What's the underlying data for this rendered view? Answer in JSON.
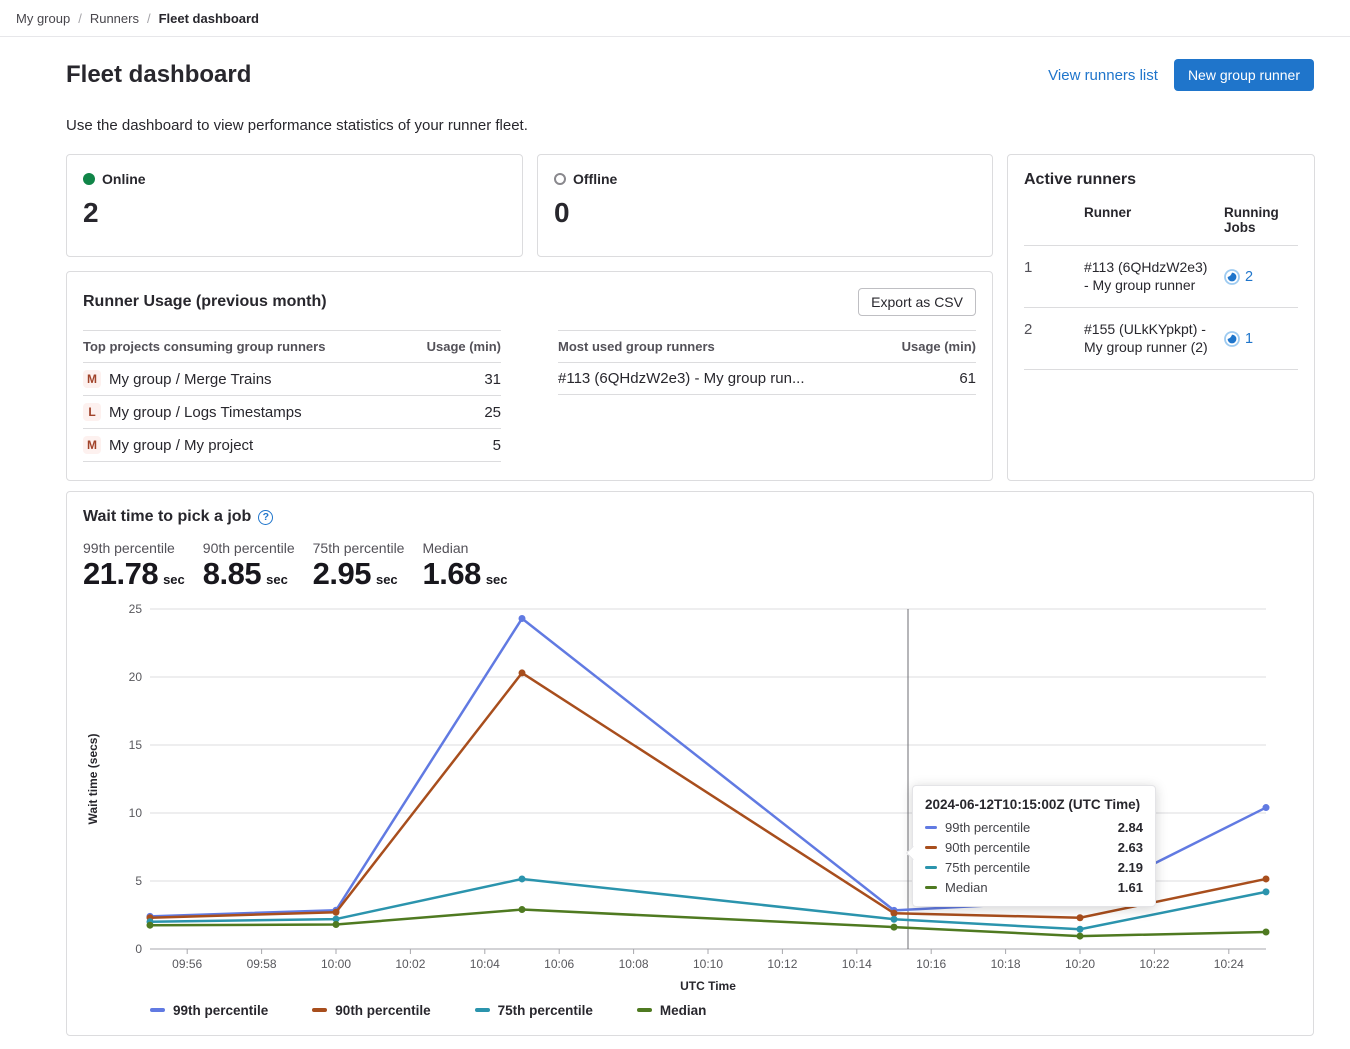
{
  "breadcrumb": {
    "items": [
      "My group",
      "Runners"
    ],
    "separator": "/",
    "current": "Fleet dashboard"
  },
  "header": {
    "title": "Fleet dashboard",
    "view_runners_link": "View runners list",
    "new_runner_button": "New group runner"
  },
  "subtitle": "Use the dashboard to view performance statistics of your runner fleet.",
  "status_cards": {
    "online": {
      "label": "Online",
      "value": "2"
    },
    "offline": {
      "label": "Offline",
      "value": "0"
    }
  },
  "active_runners": {
    "title": "Active runners",
    "columns": {
      "runner": "Runner",
      "jobs": "Running Jobs"
    },
    "rows": [
      {
        "index": "1",
        "runner": "#113 (6QHdzW2e3) - My group runner",
        "jobs": "2"
      },
      {
        "index": "2",
        "runner": "#155 (ULkKYpkpt) - My group runner (2)",
        "jobs": "1"
      }
    ]
  },
  "runner_usage": {
    "title": "Runner Usage (previous month)",
    "export_button": "Export as CSV",
    "top_projects": {
      "name_header": "Top projects consuming group runners",
      "usage_header": "Usage (min)",
      "rows": [
        {
          "avatar": "M",
          "name": "My group / Merge Trains",
          "usage": "31"
        },
        {
          "avatar": "L",
          "name": "My group / Logs Timestamps",
          "usage": "25"
        },
        {
          "avatar": "M",
          "name": "My group / My project",
          "usage": "5"
        }
      ]
    },
    "most_used": {
      "name_header": "Most used group runners",
      "usage_header": "Usage (min)",
      "rows": [
        {
          "name": "#113 (6QHdzW2e3) - My group run...",
          "usage": "61"
        }
      ]
    }
  },
  "wait_chart": {
    "title": "Wait time to pick a job",
    "stats": [
      {
        "label": "99th percentile",
        "value": "21.78",
        "unit": "sec"
      },
      {
        "label": "90th percentile",
        "value": "8.85",
        "unit": "sec"
      },
      {
        "label": "75th percentile",
        "value": "2.95",
        "unit": "sec"
      },
      {
        "label": "Median",
        "value": "1.68",
        "unit": "sec"
      }
    ],
    "tooltip": {
      "title": "2024-06-12T10:15:00Z (UTC Time)",
      "rows": [
        {
          "name": "99th percentile",
          "value": "2.84"
        },
        {
          "name": "90th percentile",
          "value": "2.63"
        },
        {
          "name": "75th percentile",
          "value": "2.19"
        },
        {
          "name": "Median",
          "value": "1.61"
        }
      ]
    }
  },
  "chart_data": {
    "type": "line",
    "title": "Wait time to pick a job",
    "xlabel": "UTC Time",
    "ylabel": "Wait time (secs)",
    "ylim": [
      0,
      25
    ],
    "y_ticks": [
      0,
      5,
      10,
      15,
      20,
      25
    ],
    "x_range": [
      "09:55",
      "10:25"
    ],
    "x_tick_labels": [
      "09:56",
      "09:58",
      "10:00",
      "10:02",
      "10:04",
      "10:06",
      "10:08",
      "10:10",
      "10:12",
      "10:14",
      "10:16",
      "10:18",
      "10:20",
      "10:22",
      "10:24"
    ],
    "x": [
      "09:55",
      "10:00",
      "10:05",
      "10:15",
      "10:20",
      "10:25"
    ],
    "series": [
      {
        "name": "99th percentile",
        "color": "#617ae2",
        "values": [
          2.4,
          2.85,
          24.3,
          2.84,
          3.55,
          10.4
        ]
      },
      {
        "name": "90th percentile",
        "color": "#a84e1d",
        "values": [
          2.3,
          2.7,
          20.3,
          2.63,
          2.3,
          5.15
        ]
      },
      {
        "name": "75th percentile",
        "color": "#2b94ad",
        "values": [
          2.0,
          2.2,
          5.15,
          2.19,
          1.45,
          4.2
        ]
      },
      {
        "name": "Median",
        "color": "#4f7a21",
        "values": [
          1.75,
          1.8,
          2.9,
          1.61,
          0.95,
          1.25
        ]
      }
    ],
    "crosshair_time": "10:15",
    "grid": true,
    "legend_position": "bottom"
  },
  "icons": {
    "online": "filled-green-circle",
    "offline": "hollow-gray-circle",
    "help": "question-mark-circle",
    "running_jobs": "blue-running-crescent"
  },
  "colors": {
    "accent_blue": "#1f75cb",
    "online_green": "#108548"
  }
}
